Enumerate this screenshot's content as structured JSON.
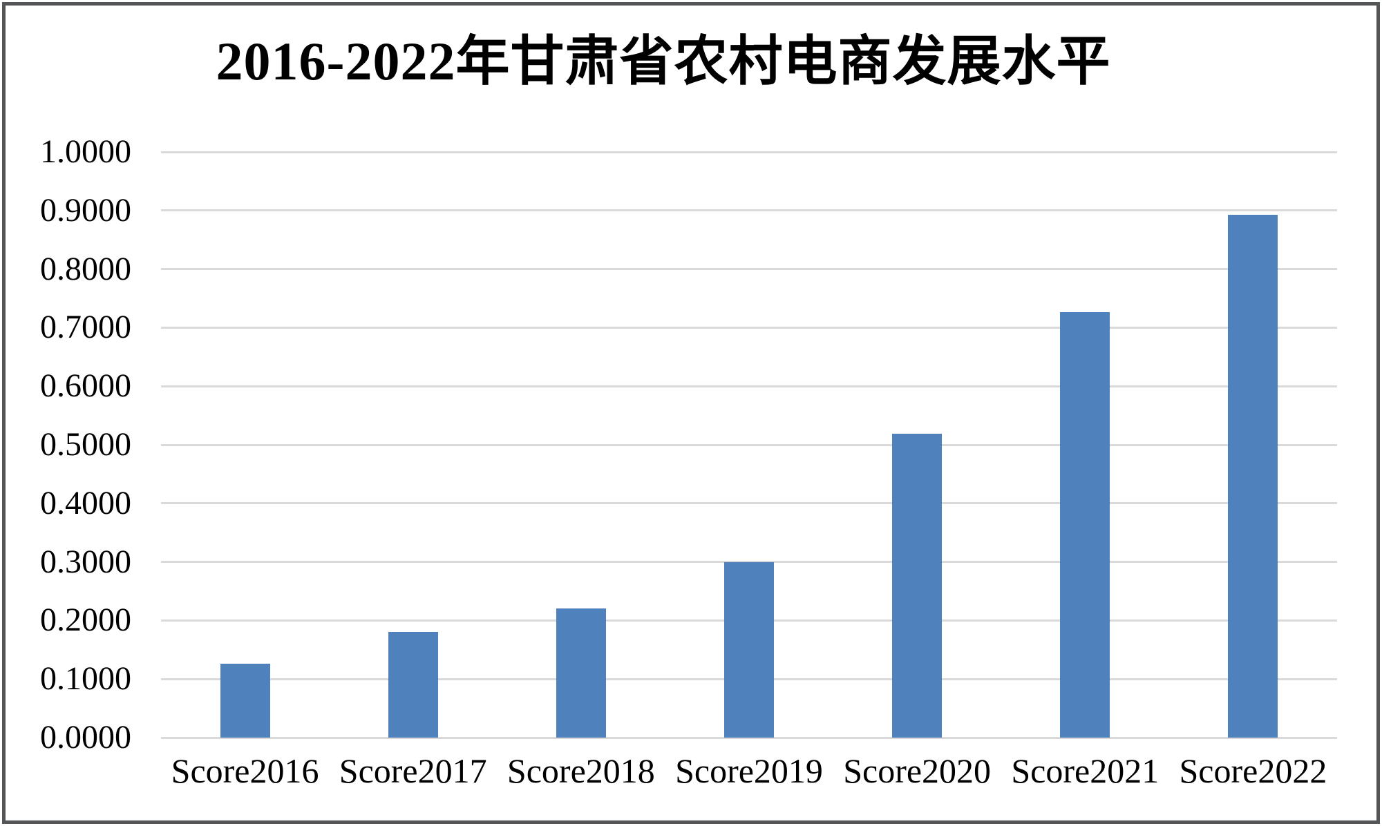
{
  "title": "2016-2022年甘肃省农村电商发展水平",
  "colors": {
    "bar": "#4f81bd",
    "gridline": "#d9d9d9",
    "frame_border": "#545557",
    "text": "#000000",
    "background": "#ffffff"
  },
  "chart_data": {
    "type": "bar",
    "title": "2016-2022年甘肃省农村电商发展水平",
    "categories": [
      "Score2016",
      "Score2017",
      "Score2018",
      "Score2019",
      "Score2020",
      "Score2021",
      "Score2022"
    ],
    "values": [
      0.126,
      0.181,
      0.221,
      0.3,
      0.519,
      0.726,
      0.893
    ],
    "xlabel": "",
    "ylabel": "",
    "ylim": [
      0.0,
      1.0
    ],
    "ytick_step": 0.1,
    "ytick_labels": [
      "0.0000",
      "0.1000",
      "0.2000",
      "0.3000",
      "0.4000",
      "0.5000",
      "0.6000",
      "0.7000",
      "0.8000",
      "0.9000",
      "1.0000"
    ],
    "grid": true,
    "legend": "none",
    "series_color": "#4f81bd"
  }
}
